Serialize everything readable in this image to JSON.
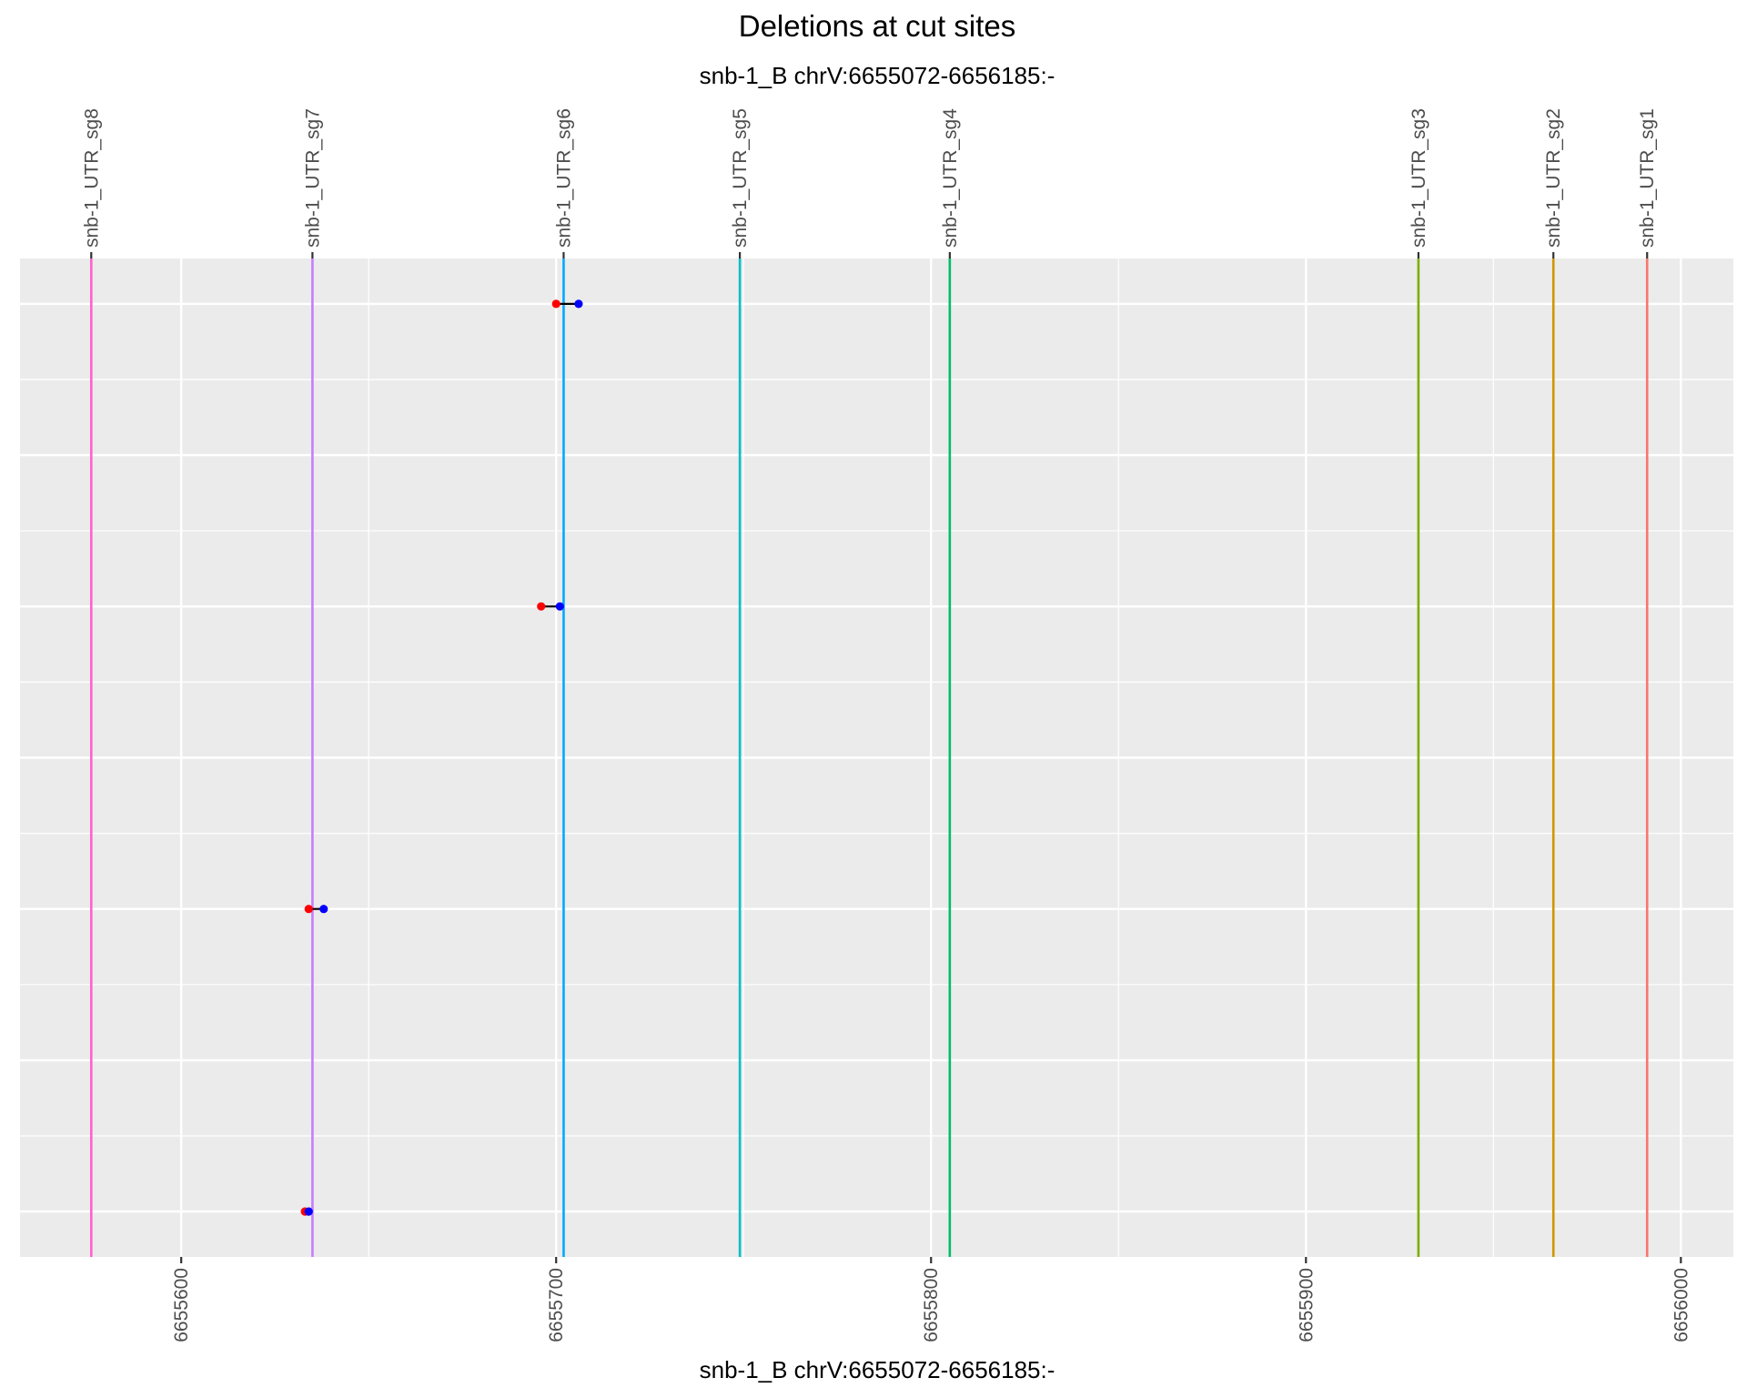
{
  "chart_data": {
    "type": "scatter",
    "title": "Deletions at cut sites",
    "subtitle": "snb-1_B chrV:6655072-6656185:-",
    "xlabel": "snb-1_B chrV:6655072-6656185:-",
    "ylabel": "",
    "xlim": [
      6655557,
      6656014
    ],
    "ylim": [
      0.7,
      7.3
    ],
    "x_ticks": [
      6655600,
      6655700,
      6655800,
      6655900,
      6656000
    ],
    "x_tick_labels": [
      "6655600",
      "6655700",
      "6655800",
      "6655900",
      "6656000"
    ],
    "y_rows": [
      1,
      2,
      3,
      4,
      5,
      6,
      7
    ],
    "grid": true,
    "panel_background": "#ebebeb",
    "cut_sites": [
      {
        "name": "snb-1_UTR_sg8",
        "x": 6655576,
        "color": "#ff61cc"
      },
      {
        "name": "snb-1_UTR_sg7",
        "x": 6655635,
        "color": "#c77cff"
      },
      {
        "name": "snb-1_UTR_sg6",
        "x": 6655702,
        "color": "#00a9ff"
      },
      {
        "name": "snb-1_UTR_sg5",
        "x": 6655749,
        "color": "#00bfc4"
      },
      {
        "name": "snb-1_UTR_sg4",
        "x": 6655805,
        "color": "#00be67"
      },
      {
        "name": "snb-1_UTR_sg3",
        "x": 6655930,
        "color": "#7cae00"
      },
      {
        "name": "snb-1_UTR_sg2",
        "x": 6655966,
        "color": "#cd9600"
      },
      {
        "name": "snb-1_UTR_sg1",
        "x": 6655991,
        "color": "#f8766d"
      }
    ],
    "deletions": [
      {
        "y": 7,
        "start": 6655700,
        "end": 6655706
      },
      {
        "y": 5,
        "start": 6655696,
        "end": 6655701
      },
      {
        "y": 3,
        "start": 6655634,
        "end": 6655638
      },
      {
        "y": 1,
        "start": 6655633,
        "end": 6655634
      }
    ],
    "start_color": "#ff0000",
    "end_color": "#0000ff"
  }
}
